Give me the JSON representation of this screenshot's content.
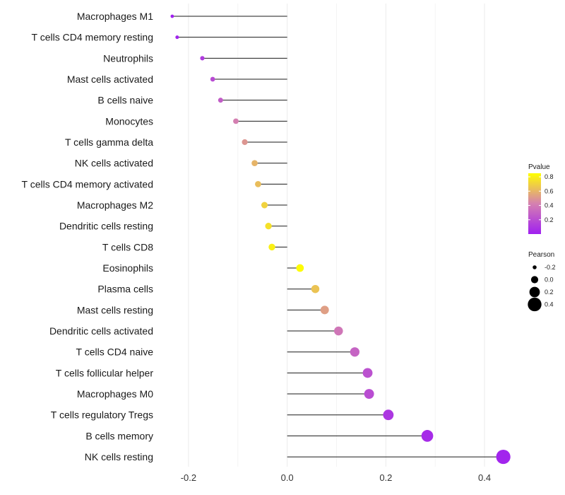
{
  "chart_data": {
    "type": "lollipop",
    "categories": [
      "Macrophages M1",
      "T cells CD4 memory resting",
      "Neutrophils",
      "Mast cells activated",
      "B cells naive",
      "Monocytes",
      "T cells gamma delta",
      "NK cells activated",
      "T cells CD4 memory activated",
      "Macrophages M2",
      "Dendritic cells resting",
      "T cells CD8",
      "Eosinophils",
      "Plasma cells",
      "Mast cells resting",
      "Dendritic cells activated",
      "T cells CD4 naive",
      "T cells follicular helper",
      "Macrophages M0",
      "T cells regulatory  Tregs",
      "B cells memory",
      "NK cells resting"
    ],
    "values": [
      -0.233,
      -0.223,
      -0.172,
      -0.151,
      -0.135,
      -0.104,
      -0.086,
      -0.066,
      -0.059,
      -0.046,
      -0.038,
      -0.031,
      0.026,
      0.057,
      0.076,
      0.104,
      0.137,
      0.163,
      0.166,
      0.205,
      0.284,
      0.438
    ],
    "pvalues": [
      0.0,
      0.02,
      0.12,
      0.19,
      0.27,
      0.42,
      0.5,
      0.6,
      0.63,
      0.7,
      0.75,
      0.8,
      0.84,
      0.65,
      0.53,
      0.38,
      0.3,
      0.22,
      0.2,
      0.1,
      0.05,
      0.02
    ],
    "xlim": [
      -0.25,
      0.46
    ],
    "x_ticks": [
      -0.2,
      0.0,
      0.2,
      0.4
    ],
    "x_tick_labels": [
      "-0.2",
      "0.0",
      "0.2",
      "0.4"
    ],
    "title": "",
    "xlabel": "",
    "ylabel": "",
    "legend": {
      "color_title": "Pvalue",
      "color_ticks": [
        0.2,
        0.4,
        0.6,
        0.8
      ],
      "color_tick_labels": [
        "0.2",
        "0.4",
        "0.6",
        "0.8"
      ],
      "color_range": [
        0.0,
        0.85
      ],
      "color_low": "#a020f0",
      "color_mid": "#d580b0",
      "color_high": "#ffff00",
      "size_title": "Pearson",
      "size_values": [
        -0.2,
        0.0,
        0.2,
        0.4
      ],
      "size_labels": [
        "-0.2",
        "0.0",
        "0.2",
        "0.4"
      ]
    }
  }
}
